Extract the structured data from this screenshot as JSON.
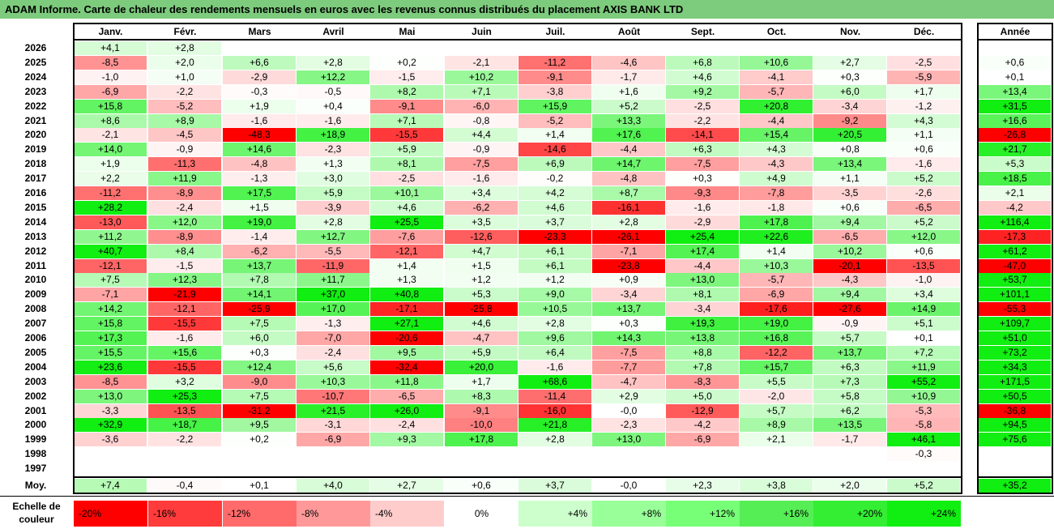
{
  "chart_data": {
    "type": "heatmap",
    "title": "ADAM Informe. Carte de chaleur des rendements mensuels en euros avec les revenus connus distribués du placement AXIS BANK LTD",
    "columns": [
      "Janv.",
      "Févr.",
      "Mars",
      "Avril",
      "Mai",
      "Juin",
      "Juil.",
      "Août",
      "Sept.",
      "Oct.",
      "Nov.",
      "Déc."
    ],
    "year_header": "Année",
    "avg_label": "Moy.",
    "scale_label_line1": "Echelle de",
    "scale_label_line2": "couleur",
    "rows": [
      {
        "year": "2026",
        "months": [
          "+4,1",
          "+2,8",
          "",
          "",
          "",
          "",
          "",
          "",
          "",
          "",
          "",
          ""
        ],
        "annual": ""
      },
      {
        "year": "2025",
        "months": [
          "-8,5",
          "+2,0",
          "+6,6",
          "+2,8",
          "+0,2",
          "-2,1",
          "-11,2",
          "-4,6",
          "+6,8",
          "+10,6",
          "+2,7",
          "-2,5"
        ],
        "annual": "+0,6"
      },
      {
        "year": "2024",
        "months": [
          "-1,0",
          "+1,0",
          "-2,9",
          "+12,2",
          "-1,5",
          "+10,2",
          "-9,1",
          "-1,7",
          "+4,6",
          "-4,1",
          "+0,3",
          "-5,9"
        ],
        "annual": "+0,1"
      },
      {
        "year": "2023",
        "months": [
          "-6,9",
          "-2,2",
          "-0,3",
          "-0,5",
          "+8,2",
          "+7,1",
          "-3,8",
          "+1,6",
          "+9,2",
          "-5,7",
          "+6,0",
          "+1,7"
        ],
        "annual": "+13,4"
      },
      {
        "year": "2022",
        "months": [
          "+15,8",
          "-5,2",
          "+1,9",
          "+0,4",
          "-9,1",
          "-6,0",
          "+15,9",
          "+5,2",
          "-2,5",
          "+20,8",
          "-3,4",
          "-1,2"
        ],
        "annual": "+31,5"
      },
      {
        "year": "2021",
        "months": [
          "+8,6",
          "+8,9",
          "-1,6",
          "-1,6",
          "+7,1",
          "-0,8",
          "-5,2",
          "+13,3",
          "-2,2",
          "-4,4",
          "-9,2",
          "+4,3"
        ],
        "annual": "+16,6"
      },
      {
        "year": "2020",
        "months": [
          "-2,1",
          "-4,5",
          "-48,3",
          "+18,9",
          "-15,5",
          "+4,4",
          "+1,4",
          "+17,6",
          "-14,1",
          "+15,4",
          "+20,5",
          "+1,1"
        ],
        "annual": "-26,8"
      },
      {
        "year": "2019",
        "months": [
          "+14,0",
          "-0,9",
          "+14,6",
          "-2,3",
          "+5,9",
          "-0,9",
          "-14,6",
          "-4,4",
          "+6,3",
          "+4,3",
          "+0,8",
          "+0,6"
        ],
        "annual": "+21,7"
      },
      {
        "year": "2018",
        "months": [
          "+1,9",
          "-11,3",
          "-4,8",
          "+1,3",
          "+8,1",
          "-7,5",
          "+6,9",
          "+14,7",
          "-7,5",
          "-4,3",
          "+13,4",
          "-1,6"
        ],
        "annual": "+5,3"
      },
      {
        "year": "2017",
        "months": [
          "+2,2",
          "+11,9",
          "-1,3",
          "+3,0",
          "-2,5",
          "-1,6",
          "-0,2",
          "-4,8",
          "+0,3",
          "+4,9",
          "+1,1",
          "+5,2"
        ],
        "annual": "+18,5"
      },
      {
        "year": "2016",
        "months": [
          "-11,2",
          "-8,9",
          "+17,5",
          "+5,9",
          "+10,1",
          "+3,4",
          "+4,2",
          "+8,7",
          "-9,3",
          "-7,8",
          "-3,5",
          "-2,6"
        ],
        "annual": "+2,1"
      },
      {
        "year": "2015",
        "months": [
          "+28,2",
          "-2,4",
          "+1,5",
          "-3,9",
          "+4,6",
          "-6,2",
          "+4,6",
          "-16,1",
          "-1,6",
          "-1,8",
          "+0,6",
          "-6,5"
        ],
        "annual": "-4,2"
      },
      {
        "year": "2014",
        "months": [
          "-13,0",
          "+12,0",
          "+19,0",
          "+2,8",
          "+25,5",
          "+3,5",
          "+3,7",
          "+2,8",
          "-2,9",
          "+17,8",
          "+9,4",
          "+5,2"
        ],
        "annual": "+116,4"
      },
      {
        "year": "2013",
        "months": [
          "+11,2",
          "-8,9",
          "-1,4",
          "+12,7",
          "-7,6",
          "-12,6",
          "-23,3",
          "-26,1",
          "+25,4",
          "+22,6",
          "-6,5",
          "+12,0"
        ],
        "annual": "-17,3"
      },
      {
        "year": "2012",
        "months": [
          "+40,7",
          "+8,4",
          "-6,2",
          "-5,5",
          "-12,1",
          "+4,7",
          "+6,1",
          "-7,1",
          "+17,4",
          "+1,4",
          "+10,2",
          "+0,6"
        ],
        "annual": "+61,2"
      },
      {
        "year": "2011",
        "months": [
          "-12,1",
          "-1,5",
          "+13,7",
          "-11,9",
          "+1,4",
          "+1,5",
          "+6,1",
          "-23,8",
          "-4,4",
          "+10,3",
          "-20,1",
          "-13,5"
        ],
        "annual": "-47,0"
      },
      {
        "year": "2010",
        "months": [
          "+7,5",
          "+12,3",
          "+7,8",
          "+11,7",
          "+1,3",
          "+1,2",
          "+1,2",
          "+0,9",
          "+13,0",
          "-5,7",
          "-4,3",
          "-1,0"
        ],
        "annual": "+53,7"
      },
      {
        "year": "2009",
        "months": [
          "-7,1",
          "-21,9",
          "+14,1",
          "+37,0",
          "+40,8",
          "+5,3",
          "+9,0",
          "-3,4",
          "+8,1",
          "-6,9",
          "+9,4",
          "+3,4"
        ],
        "annual": "+101,1"
      },
      {
        "year": "2008",
        "months": [
          "+14,2",
          "-12,1",
          "-25,9",
          "+17,0",
          "-17,1",
          "-25,8",
          "+10,5",
          "+13,7",
          "-3,4",
          "-17,6",
          "-27,6",
          "+14,9"
        ],
        "annual": "-55,3"
      },
      {
        "year": "2007",
        "months": [
          "+15,8",
          "-15,5",
          "+7,5",
          "-1,3",
          "+27,1",
          "+4,6",
          "+2,8",
          "+0,3",
          "+19,3",
          "+19,0",
          "-0,9",
          "+5,1"
        ],
        "annual": "+109,7"
      },
      {
        "year": "2006",
        "months": [
          "+17,3",
          "-1,6",
          "+6,0",
          "-7,0",
          "-20,6",
          "-4,7",
          "+9,6",
          "+14,3",
          "+13,8",
          "+16,8",
          "+5,7",
          "+0,1"
        ],
        "annual": "+51,0"
      },
      {
        "year": "2005",
        "months": [
          "+15,5",
          "+15,6",
          "+0,3",
          "-2,4",
          "+9,5",
          "+5,9",
          "+6,4",
          "-7,5",
          "+8,8",
          "-12,2",
          "+13,7",
          "+7,2"
        ],
        "annual": "+73,2"
      },
      {
        "year": "2004",
        "months": [
          "+23,6",
          "-15,5",
          "+12,4",
          "+5,6",
          "-32,4",
          "+20,0",
          "-1,6",
          "-7,7",
          "+7,8",
          "+15,7",
          "+6,3",
          "+11,9"
        ],
        "annual": "+34,3"
      },
      {
        "year": "2003",
        "months": [
          "-8,5",
          "+3,2",
          "-9,0",
          "+10,3",
          "+11,8",
          "+1,7",
          "+68,6",
          "-4,7",
          "-8,3",
          "+5,5",
          "+7,3",
          "+55,2"
        ],
        "annual": "+171,5"
      },
      {
        "year": "2002",
        "months": [
          "+13,0",
          "+25,3",
          "+7,5",
          "-10,7",
          "-6,5",
          "+8,3",
          "-11,4",
          "+2,9",
          "+5,0",
          "-2,0",
          "+5,8",
          "+10,9"
        ],
        "annual": "+50,5"
      },
      {
        "year": "2001",
        "months": [
          "-3,3",
          "-13,5",
          "-31,2",
          "+21,5",
          "+26,0",
          "-9,1",
          "-16,0",
          "-0,0",
          "-12,9",
          "+5,7",
          "+6,2",
          "-5,3"
        ],
        "annual": "-36,8"
      },
      {
        "year": "2000",
        "months": [
          "+32,9",
          "+18,7",
          "+9,5",
          "-3,1",
          "-2,4",
          "-10,0",
          "+21,8",
          "-2,3",
          "-4,2",
          "+8,9",
          "+13,5",
          "-5,8"
        ],
        "annual": "+94,5"
      },
      {
        "year": "1999",
        "months": [
          "-3,6",
          "-2,2",
          "+0,2",
          "-6,9",
          "+9,3",
          "+17,8",
          "+2,8",
          "+13,0",
          "-6,9",
          "+2,1",
          "-1,7",
          "+46,1"
        ],
        "annual": "+75,6"
      },
      {
        "year": "1998",
        "months": [
          "",
          "",
          "",
          "",
          "",
          "",
          "",
          "",
          "",
          "",
          "",
          "-0,3"
        ],
        "annual": ""
      },
      {
        "year": "1997",
        "months": [
          "",
          "",
          "",
          "",
          "",
          "",
          "",
          "",
          "",
          "",
          "",
          ""
        ],
        "annual": ""
      }
    ],
    "averages": {
      "months": [
        "+7,4",
        "-0,4",
        "+0,1",
        "+4,0",
        "+2,7",
        "+0,6",
        "+3,7",
        "-0,0",
        "+2,3",
        "+3,8",
        "+2,0",
        "+5,2"
      ],
      "annual": "+35,2"
    },
    "color_scale": [
      {
        "label": "-20%",
        "color": "#ff0000",
        "align": "left"
      },
      {
        "label": "-16%",
        "color": "#ff3b3b",
        "align": "left"
      },
      {
        "label": "-12%",
        "color": "#ff6b6b",
        "align": "left"
      },
      {
        "label": "-8%",
        "color": "#ff9999",
        "align": "left"
      },
      {
        "label": "-4%",
        "color": "#ffcccc",
        "align": "left"
      },
      {
        "label": "0%",
        "color": "#ffffff",
        "align": "center"
      },
      {
        "label": "+4%",
        "color": "#ccffcc",
        "align": "right"
      },
      {
        "label": "+8%",
        "color": "#99ff99",
        "align": "right"
      },
      {
        "label": "+12%",
        "color": "#77ff77",
        "align": "right"
      },
      {
        "label": "+16%",
        "color": "#55ee55",
        "align": "right"
      },
      {
        "label": "+20%",
        "color": "#33ee33",
        "align": "right"
      },
      {
        "label": "+24%",
        "color": "#11ee11",
        "align": "right"
      }
    ]
  }
}
